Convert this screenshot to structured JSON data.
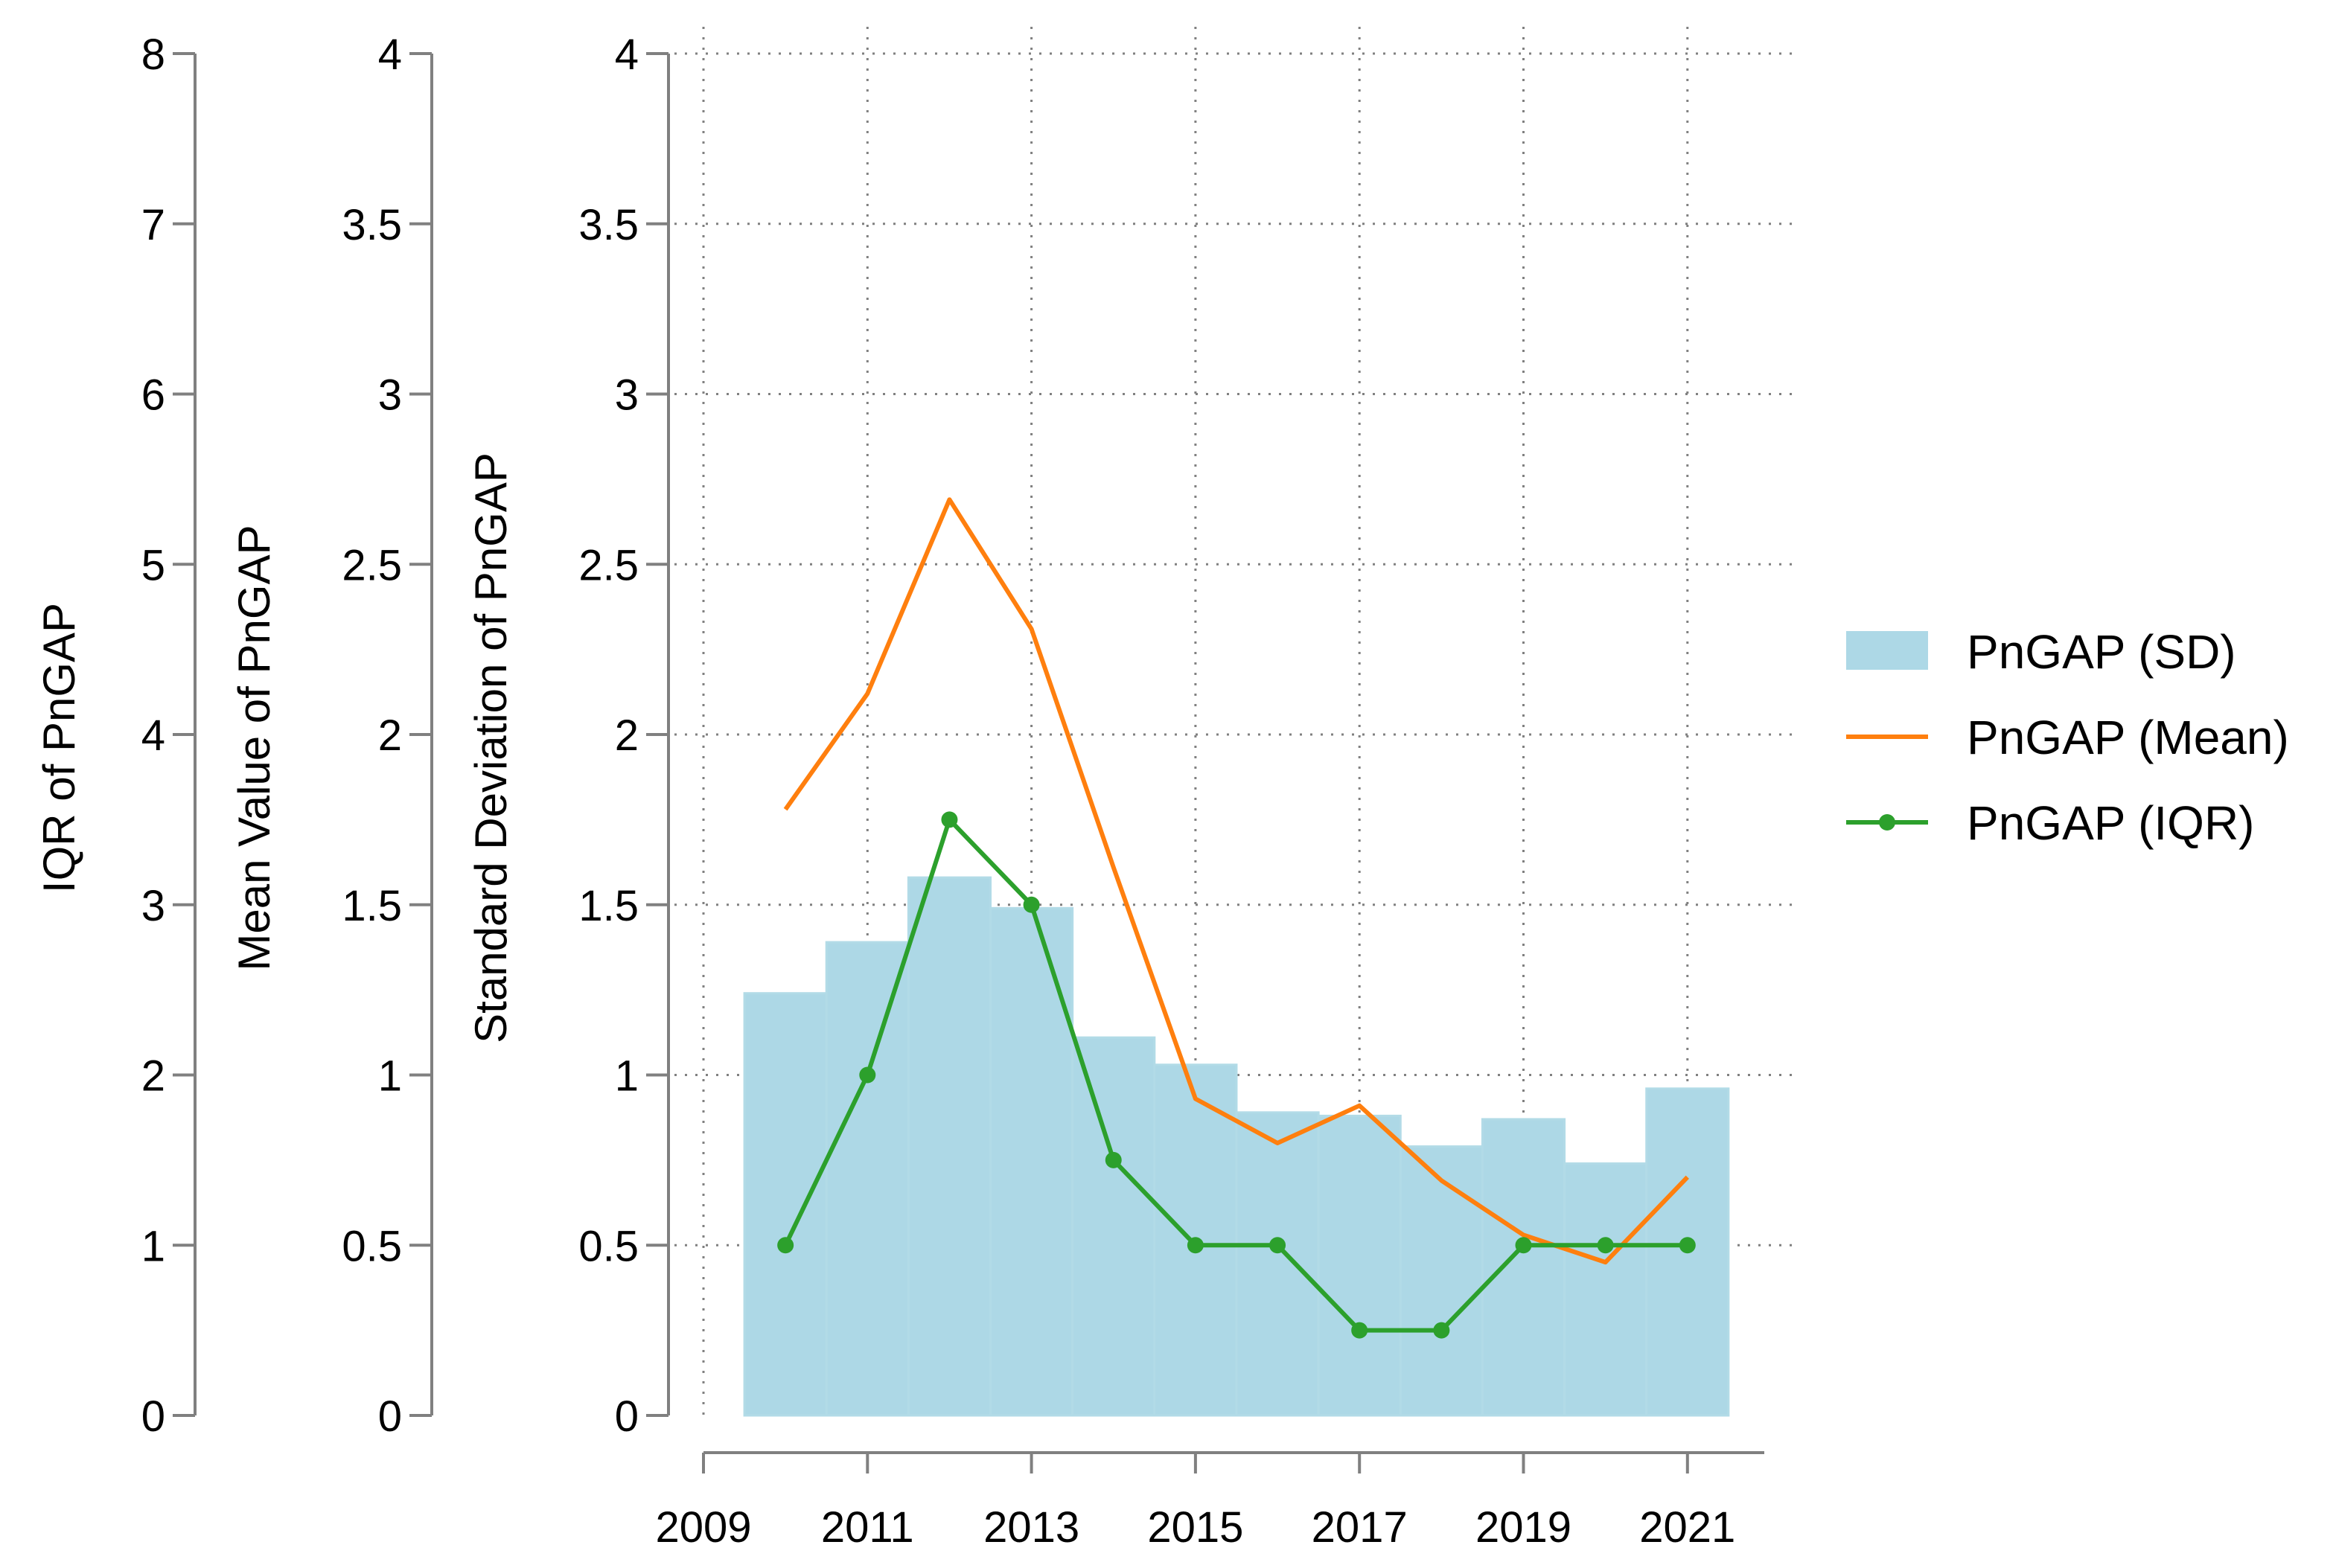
{
  "chart_data": {
    "type": "bar+line",
    "years": [
      2010,
      2011,
      2012,
      2013,
      2014,
      2015,
      2016,
      2017,
      2018,
      2019,
      2020,
      2021
    ],
    "series": [
      {
        "name": "PnGAP (SD)",
        "type": "bar",
        "axis": "Standard Deviation of PnGAP",
        "values": [
          1.24,
          1.39,
          1.58,
          1.49,
          1.11,
          1.03,
          0.89,
          0.88,
          0.79,
          0.87,
          0.74,
          0.96
        ]
      },
      {
        "name": "PnGAP (Mean)",
        "type": "line",
        "axis": "Mean Value of PnGAP",
        "values": [
          1.78,
          2.12,
          2.69,
          2.31,
          1.61,
          0.93,
          0.8,
          0.91,
          0.69,
          0.53,
          0.45,
          0.7
        ]
      },
      {
        "name": "PnGAP (IQR)",
        "type": "line-markers",
        "axis": "IQR of PnGAP",
        "values": [
          1.0,
          2.0,
          3.5,
          3.0,
          1.5,
          1.0,
          1.0,
          0.5,
          0.5,
          1.0,
          1.0,
          1.0
        ]
      }
    ],
    "axes": {
      "iqr": {
        "label": "IQR of PnGAP",
        "range": [
          0,
          8
        ],
        "ticks": [
          "0",
          "1",
          "2",
          "3",
          "4",
          "5",
          "6",
          "7",
          "8"
        ]
      },
      "mean": {
        "label": "Mean Value of PnGAP",
        "range": [
          0,
          4
        ],
        "ticks": [
          "0",
          "0.5",
          "1",
          "1.5",
          "2",
          "2.5",
          "3",
          "3.5",
          "4"
        ]
      },
      "sd": {
        "label": "Standard Deviation of PnGAP",
        "range": [
          0,
          4
        ],
        "ticks": [
          "0",
          "0.5",
          "1",
          "1.5",
          "2",
          "2.5",
          "3",
          "3.5",
          "4"
        ]
      },
      "x": {
        "label": "",
        "range": [
          2009,
          2022
        ],
        "ticks": [
          "2009",
          "2011",
          "2013",
          "2015",
          "2017",
          "2019",
          "2021"
        ]
      }
    },
    "grid": true,
    "legend": {
      "position": "right",
      "entries": [
        "PnGAP (SD)",
        "PnGAP (Mean)",
        "PnGAP (IQR)"
      ]
    },
    "colors": {
      "sd": "#add8e6",
      "mean": "#ff7f0e",
      "iqr": "#2ca02c",
      "axis": "#808080",
      "grid": "#808080"
    }
  }
}
